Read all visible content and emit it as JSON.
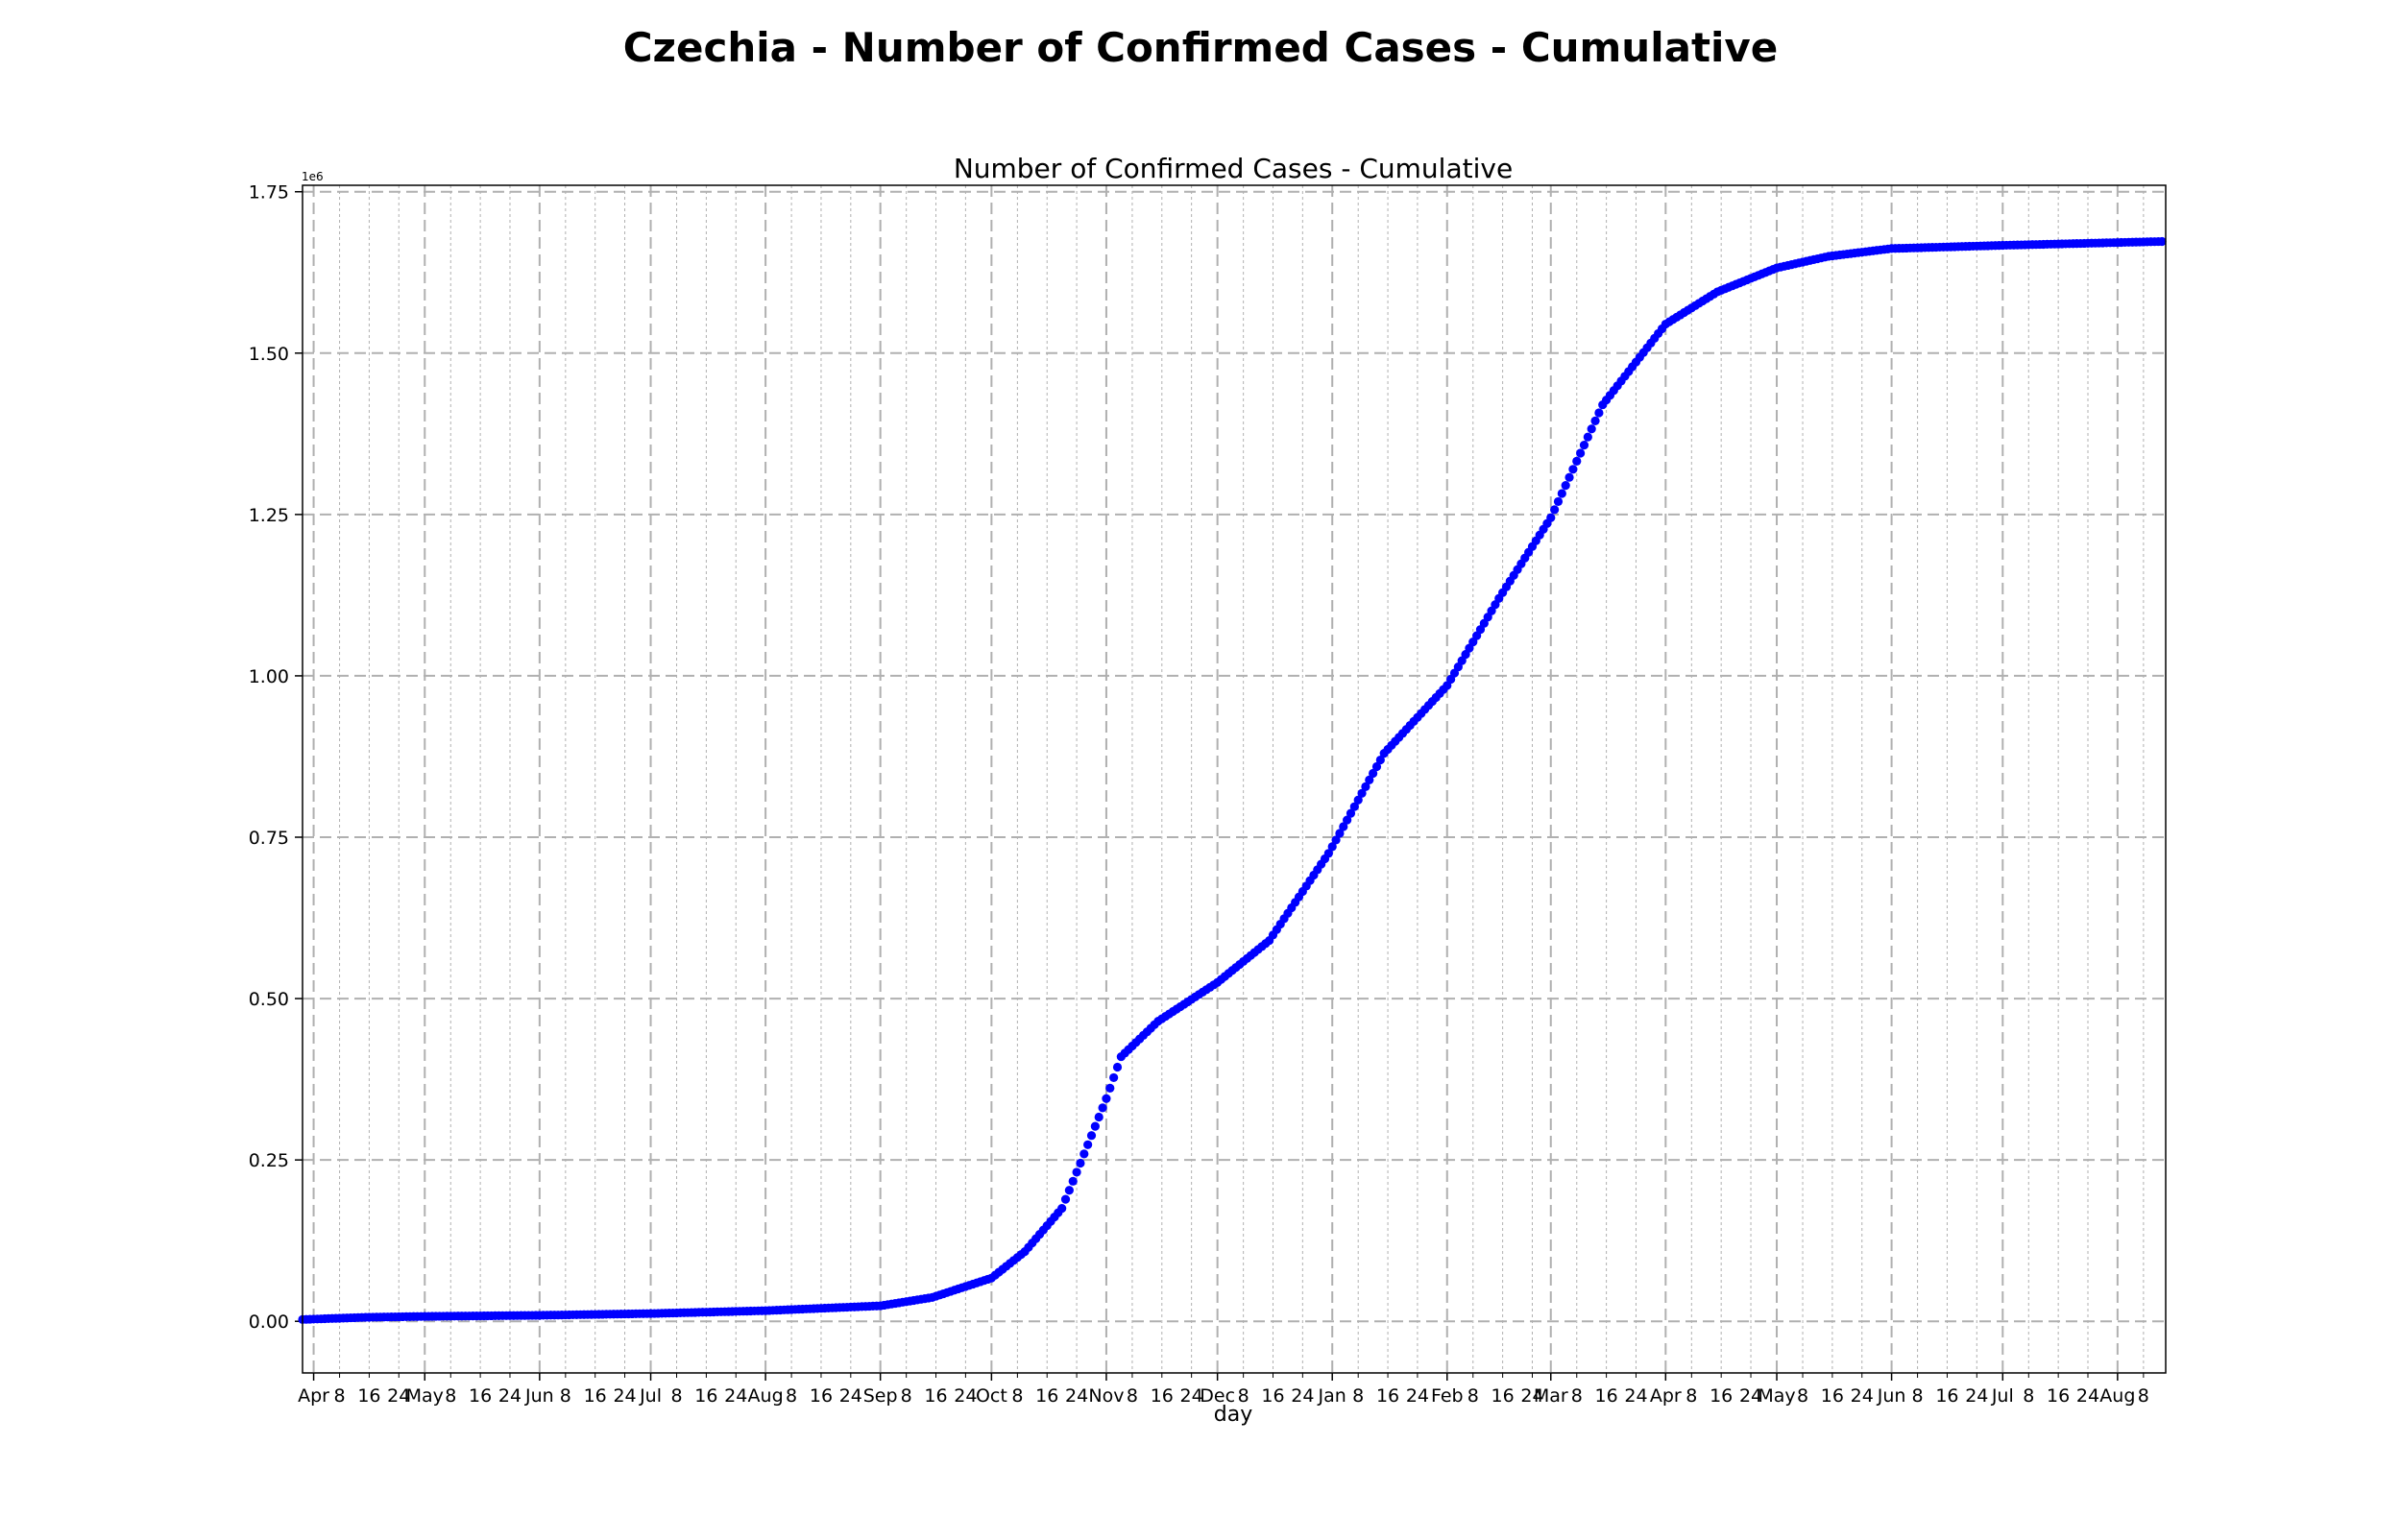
{
  "figure_title": "Czechia - Number of Confirmed Cases - Cumulative",
  "colors": {
    "series": "#0000ff",
    "grid": "#b0b0b0",
    "axis": "#000000"
  },
  "chart_data": {
    "type": "scatter",
    "title": "Number of Confirmed Cases - Cumulative",
    "xlabel": "day",
    "ylabel": "",
    "y_offset_label": "1e6",
    "y_scale_factor": 1000000,
    "grid": true,
    "xlim": [
      "2020-03-29",
      "2021-08-14"
    ],
    "ylim": [
      -80000,
      1760000
    ],
    "yticks": [
      0,
      250000,
      500000,
      750000,
      1000000,
      1250000,
      1500000,
      1750000
    ],
    "ytick_labels": [
      "0.00",
      "0.25",
      "0.50",
      "0.75",
      "1.00",
      "1.25",
      "1.50",
      "1.75"
    ],
    "month_ticks": [
      {
        "date": "2020-04-01",
        "label": "Apr"
      },
      {
        "date": "2020-05-01",
        "label": "May"
      },
      {
        "date": "2020-06-01",
        "label": "Jun"
      },
      {
        "date": "2020-07-01",
        "label": "Jul"
      },
      {
        "date": "2020-08-01",
        "label": "Aug"
      },
      {
        "date": "2020-09-01",
        "label": "Sep"
      },
      {
        "date": "2020-10-01",
        "label": "Oct"
      },
      {
        "date": "2020-11-01",
        "label": "Nov"
      },
      {
        "date": "2020-12-01",
        "label": "Dec"
      },
      {
        "date": "2021-01-01",
        "label": "Jan"
      },
      {
        "date": "2021-02-01",
        "label": "Feb"
      },
      {
        "date": "2021-03-01",
        "label": "Mar"
      },
      {
        "date": "2021-04-01",
        "label": "Apr"
      },
      {
        "date": "2021-05-01",
        "label": "May"
      },
      {
        "date": "2021-06-01",
        "label": "Jun"
      },
      {
        "date": "2021-07-01",
        "label": "Jul"
      },
      {
        "date": "2021-08-01",
        "label": "Aug"
      }
    ],
    "minor_tick_days": [
      8,
      16,
      24
    ],
    "series": [
      {
        "x_start": "2020-03-29",
        "x_end": "2021-08-13",
        "anchors": [
          [
            "2020-03-29",
            2800
          ],
          [
            "2020-04-15",
            6200
          ],
          [
            "2020-05-01",
            7600
          ],
          [
            "2020-06-01",
            9300
          ],
          [
            "2020-07-01",
            12000
          ],
          [
            "2020-08-01",
            16500
          ],
          [
            "2020-09-01",
            24000
          ],
          [
            "2020-09-15",
            37000
          ],
          [
            "2020-10-01",
            67000
          ],
          [
            "2020-10-10",
            108000
          ],
          [
            "2020-10-20",
            175000
          ],
          [
            "2020-10-25",
            245000
          ],
          [
            "2020-11-01",
            345000
          ],
          [
            "2020-11-05",
            410000
          ],
          [
            "2020-11-15",
            465000
          ],
          [
            "2020-12-01",
            525000
          ],
          [
            "2020-12-15",
            590000
          ],
          [
            "2020-12-31",
            725000
          ],
          [
            "2021-01-15",
            880000
          ],
          [
            "2021-02-01",
            985000
          ],
          [
            "2021-02-15",
            1120000
          ],
          [
            "2021-03-01",
            1245000
          ],
          [
            "2021-03-15",
            1420000
          ],
          [
            "2021-04-01",
            1545000
          ],
          [
            "2021-04-15",
            1595000
          ],
          [
            "2021-05-01",
            1632000
          ],
          [
            "2021-05-15",
            1650000
          ],
          [
            "2021-06-01",
            1662000
          ],
          [
            "2021-07-01",
            1667000
          ],
          [
            "2021-08-13",
            1673000
          ]
        ]
      }
    ]
  }
}
